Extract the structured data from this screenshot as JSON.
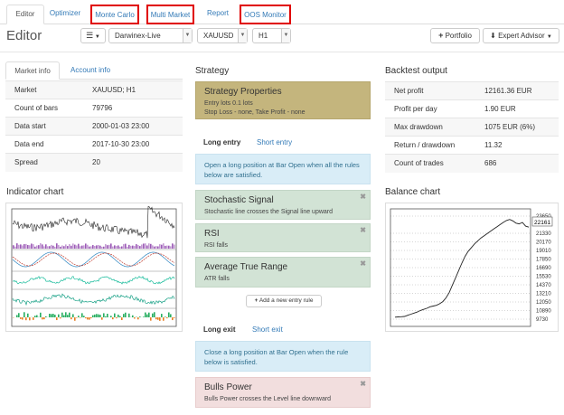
{
  "nav": {
    "tabs": [
      {
        "label": "Editor",
        "active": true
      },
      {
        "label": "Optimizer"
      },
      {
        "label": "Monte Carlo",
        "highlighted": true
      },
      {
        "label": "Multi Market",
        "highlighted": true
      },
      {
        "label": "Report"
      },
      {
        "label": "OOS Monitor",
        "highlighted": true
      }
    ]
  },
  "toolbar": {
    "title": "Editor",
    "menu_icon": "hamburger-icon",
    "account_value": "Darwinex-Live",
    "symbol_value": "XAUUSD",
    "period_value": "H1",
    "portfolio_label": "Portfolio",
    "expert_advisor_label": "Expert Advisor"
  },
  "market_info": {
    "tabs": [
      "Market info",
      "Account info"
    ],
    "rows": [
      {
        "key": "Market",
        "value": "XAUUSD; H1"
      },
      {
        "key": "Count of bars",
        "value": "79796"
      },
      {
        "key": "Data start",
        "value": "2000-01-03 23:00"
      },
      {
        "key": "Data end",
        "value": "2017-10-30 23:00"
      },
      {
        "key": "Spread",
        "value": "20"
      }
    ]
  },
  "indicator_chart": {
    "title": "Indicator chart"
  },
  "strategy": {
    "title": "Strategy",
    "properties": {
      "title": "Strategy Properties",
      "line1": "Entry lots 0.1 lots",
      "line2": "Stop Loss - none, Take Profit - none"
    },
    "long_entry_tab": "Long entry",
    "short_entry_tab": "Short entry",
    "entry_info": "Open a long position at Bar Open when all the rules below are satisfied.",
    "entry_rules": [
      {
        "title": "Stochastic Signal",
        "desc": "Stochastic line crosses the Signal line upward"
      },
      {
        "title": "RSI",
        "desc": "RSI falls"
      },
      {
        "title": "Average True Range",
        "desc": "ATR falls"
      }
    ],
    "add_entry_label": "Add a new entry rule",
    "long_exit_tab": "Long exit",
    "short_exit_tab": "Short exit",
    "exit_info": "Close a long position at Bar Open when the rule below is satisfied.",
    "exit_rules": [
      {
        "title": "Bulls Power",
        "desc": "Bulls Power crosses the Level line downward"
      }
    ]
  },
  "backtest": {
    "title": "Backtest output",
    "rows": [
      {
        "key": "Net profit",
        "value": "12161.36 EUR"
      },
      {
        "key": "Profit per day",
        "value": "1.90 EUR"
      },
      {
        "key": "Max drawdown",
        "value": "1075 EUR (6%)"
      },
      {
        "key": "Return / drawdown",
        "value": "11.32"
      },
      {
        "key": "Count of trades",
        "value": "686"
      }
    ]
  },
  "balance_chart": {
    "title": "Balance chart",
    "current_label": "22161",
    "y_ticks": [
      "23650",
      "21330",
      "20170",
      "19010",
      "17850",
      "16690",
      "15530",
      "14370",
      "13210",
      "12050",
      "10890",
      "9730"
    ]
  },
  "chart_data": {
    "type": "line",
    "title": "",
    "y_ticks": [
      23650,
      21330,
      20170,
      19010,
      17850,
      16690,
      15530,
      14370,
      13210,
      12050,
      10890,
      9730
    ],
    "ylim": [
      9730,
      23650
    ],
    "current_value": 22161,
    "series": [
      {
        "values": [
          10000,
          10030,
          10060,
          10100,
          10250,
          10400,
          10550,
          10700,
          10900,
          11050,
          11200,
          11400,
          11500,
          11600,
          11800,
          12100,
          12600,
          13300,
          14300,
          15300,
          16300,
          17300,
          18200,
          18900,
          19400,
          19900,
          20300,
          20700,
          21000,
          21300,
          21600,
          21900,
          22200,
          22500,
          22800,
          23050,
          23200,
          23000,
          22700,
          22600,
          22800,
          22300,
          22161
        ]
      }
    ]
  },
  "colors": {
    "link": "#337ab7",
    "highlight": "#e00000",
    "tan": "#c4b57d",
    "green": "#d2e3d5",
    "blue": "#d9edf7",
    "red": "#f2dede"
  }
}
